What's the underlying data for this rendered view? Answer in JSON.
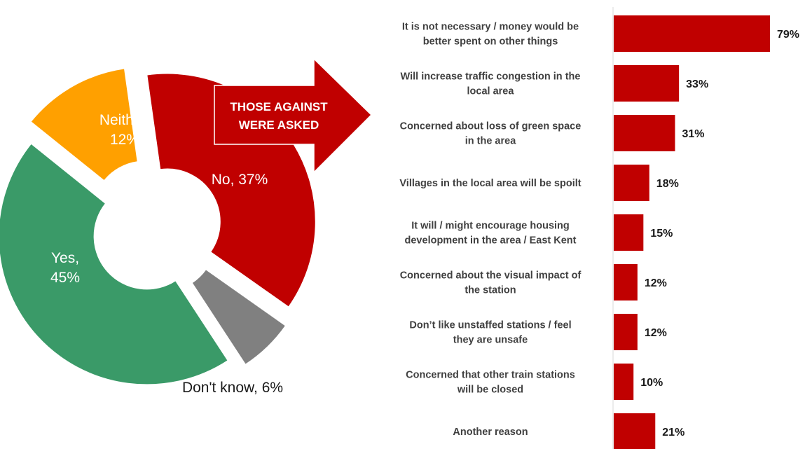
{
  "chart_data": [
    {
      "type": "pie",
      "donut": true,
      "slices": [
        {
          "label": "No, 37%",
          "value": 37,
          "color": "#c00000"
        },
        {
          "label": "Don't know, 6%",
          "value": 6,
          "color": "#808080"
        },
        {
          "label": "Yes, 45%",
          "value": 45,
          "color": "#3a9a68"
        },
        {
          "label": "Neither, 12%",
          "value": 12,
          "color": "#ffa000"
        }
      ]
    },
    {
      "type": "bar",
      "orientation": "horizontal",
      "bar_color": "#c00000",
      "categories": [
        [
          "It is not necessary / money would be",
          "better spent on other things"
        ],
        [
          "Will increase traffic congestion in the",
          "local area"
        ],
        [
          "Concerned about loss of green space",
          "in the area"
        ],
        [
          "Villages in the local area will be spoilt"
        ],
        [
          "It will / might encourage housing",
          "development in the area / East Kent"
        ],
        [
          "Concerned about the visual impact of",
          "the station"
        ],
        [
          "Don’t like unstaffed stations / feel",
          "they are unsafe"
        ],
        [
          "Concerned that other train stations",
          "will be closed"
        ],
        [
          "Another reason"
        ]
      ],
      "values": [
        79,
        33,
        31,
        18,
        15,
        12,
        12,
        10,
        21
      ],
      "value_labels": [
        "79%",
        "33%",
        "31%",
        "18%",
        "15%",
        "12%",
        "12%",
        "10%",
        "21%"
      ],
      "xlim": [
        0,
        100
      ]
    }
  ],
  "callout": {
    "lines": [
      "THOSE AGAINST",
      "WERE ASKED"
    ],
    "color": "#c00000"
  }
}
